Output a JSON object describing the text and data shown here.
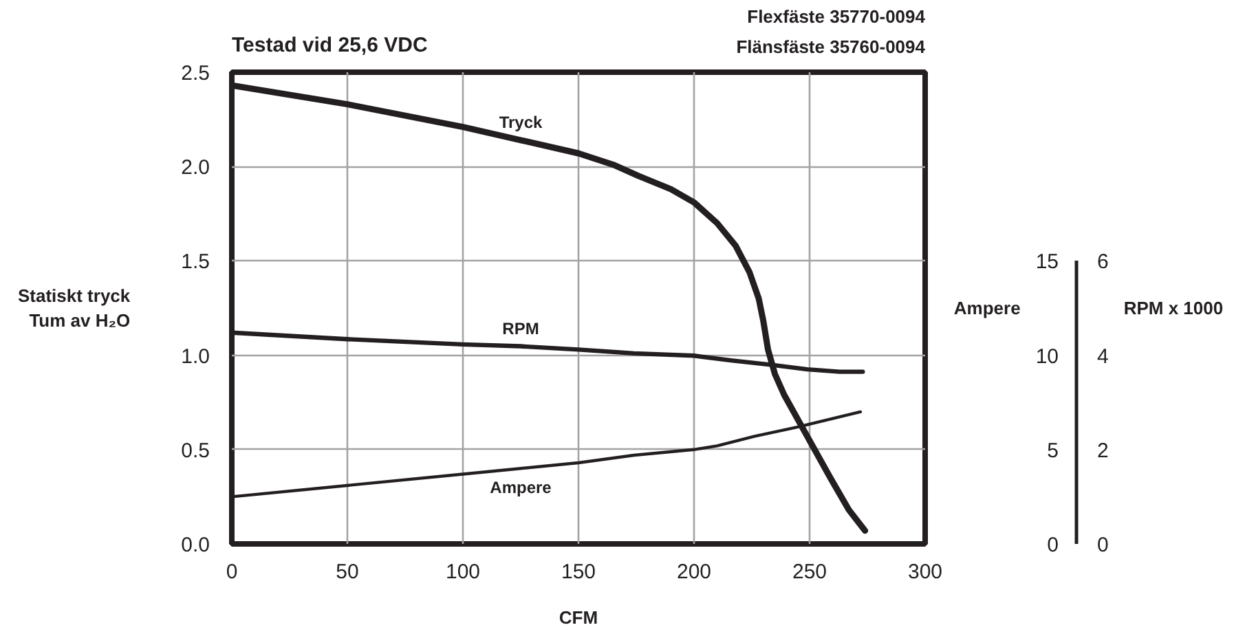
{
  "chart_data": {
    "type": "line",
    "title": "Testad vid 25,6 VDC",
    "annotations": [
      "Flexfäste 35770-0094",
      "Flänsfäste 35760-0094"
    ],
    "xlabel": "CFM",
    "ylabel": "Statiskt tryck\nTum av H₂O",
    "y2label": "Ampere",
    "y3label": "RPM x 1000",
    "xlim": [
      0,
      300
    ],
    "xticks": [
      0,
      50,
      100,
      150,
      200,
      250,
      300
    ],
    "ylim": [
      0,
      2.5
    ],
    "yticks": [
      {
        "value": 0,
        "label": "0.0"
      },
      0.5,
      {
        "value": 1,
        "label": "1.0"
      },
      1.5,
      {
        "value": 2,
        "label": "2.0"
      },
      2.5
    ],
    "y2lim": [
      0,
      25
    ],
    "y2ticks": [
      0,
      5,
      10,
      15
    ],
    "y3lim": [
      0,
      10
    ],
    "y3ticks": [
      0,
      2,
      4,
      6
    ],
    "grid": true,
    "series": [
      {
        "name": "Tryck",
        "color": "#231f20",
        "x": [
          0,
          50,
          100,
          125,
          150,
          165,
          176,
          190,
          200,
          210,
          218,
          224,
          228,
          230,
          232,
          235,
          239,
          249,
          259,
          267,
          274
        ],
        "values": [
          2.43,
          2.33,
          2.21,
          2.14,
          2.07,
          2.01,
          1.95,
          1.88,
          1.81,
          1.7,
          1.58,
          1.44,
          1.3,
          1.18,
          1.03,
          0.9,
          0.79,
          0.57,
          0.35,
          0.18,
          0.07
        ]
      },
      {
        "name": "RPM",
        "color": "#231f20",
        "axis": "y3",
        "x": [
          0,
          50,
          100,
          125,
          150,
          174,
          200,
          216,
          233,
          249,
          263,
          273
        ],
        "values": [
          4.48,
          4.34,
          4.23,
          4.19,
          4.12,
          4.04,
          3.99,
          3.89,
          3.8,
          3.7,
          3.65,
          3.65
        ]
      },
      {
        "name": "Ampere",
        "color": "#231f20",
        "axis": "y2",
        "x": [
          0,
          50,
          100,
          125,
          150,
          174,
          200,
          210,
          226,
          245,
          272
        ],
        "values": [
          2.5,
          3.1,
          3.7,
          4.0,
          4.3,
          4.7,
          5.0,
          5.2,
          5.7,
          6.2,
          7.0
        ]
      }
    ]
  }
}
